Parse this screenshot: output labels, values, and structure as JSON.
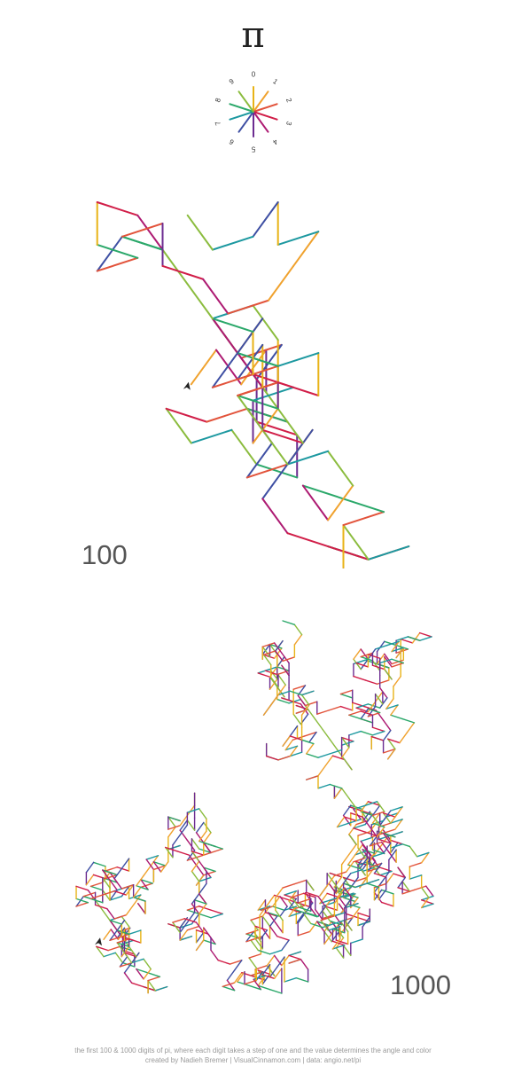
{
  "title": "π",
  "digit_labels": [
    "0",
    "1",
    "2",
    "3",
    "4",
    "5",
    "6",
    "7",
    "8",
    "9"
  ],
  "digit_colors": [
    "#E8B317",
    "#F0A22E",
    "#E2533B",
    "#D11E48",
    "#AD1A72",
    "#6C2C91",
    "#3E4FA3",
    "#1C98A0",
    "#2BA86A",
    "#8BBC3E"
  ],
  "walks": [
    {
      "label": "100",
      "digit_count": 100
    },
    {
      "label": "1000",
      "digit_count": 1000
    }
  ],
  "footer": {
    "line1": "the first 100 & 1000 digits of pi, where each digit takes a step of one and the value determines the angle and color",
    "line2": "created by Nadieh Bremer | VisualCinnamon.com | data: angio.net/pi"
  }
}
